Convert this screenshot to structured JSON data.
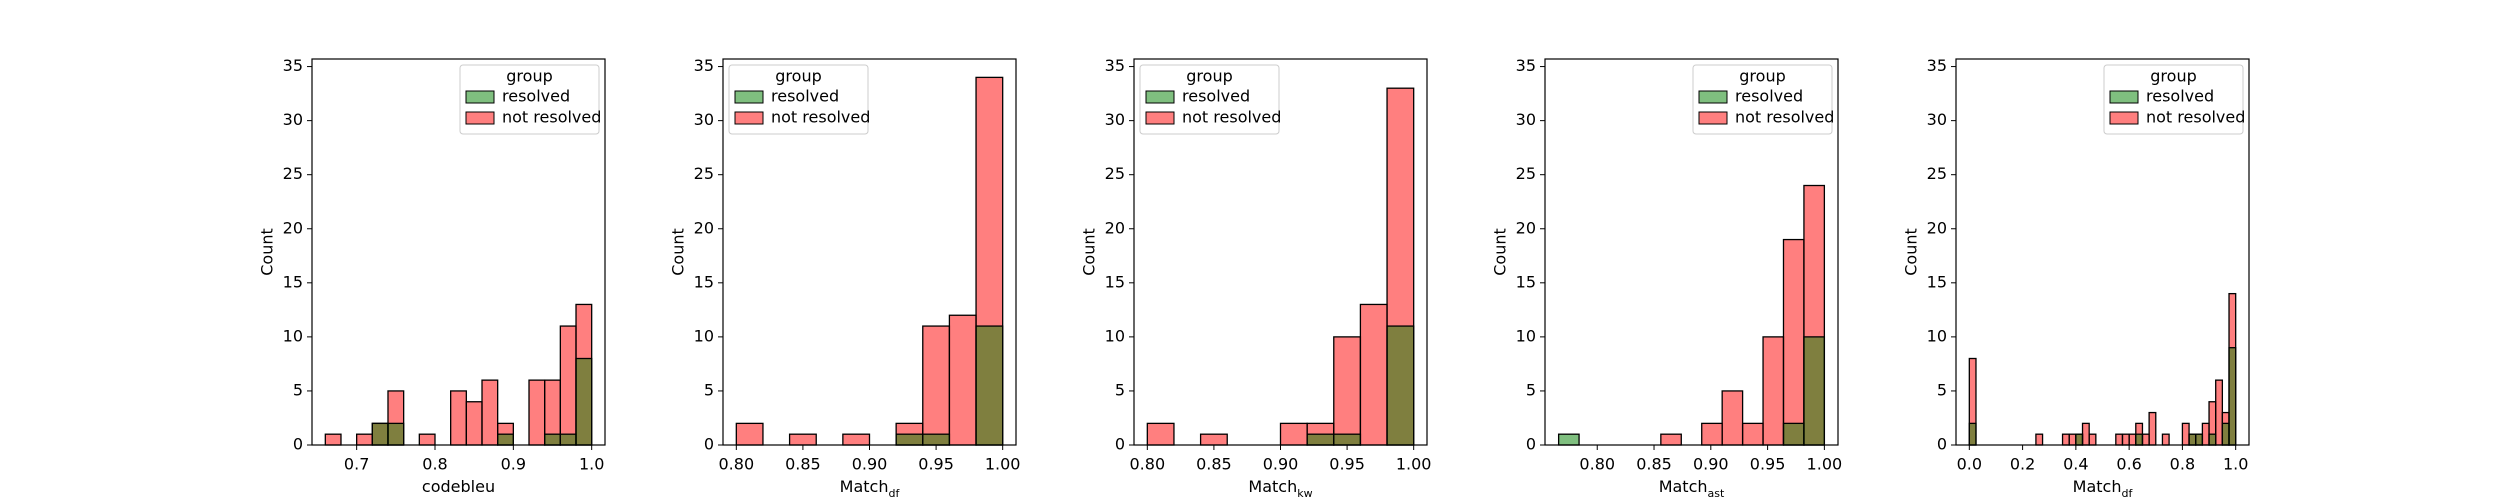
{
  "chart_data": [
    {
      "type": "histogram",
      "xlabel": "codebleu",
      "ylabel": "Count",
      "legend_title": "group",
      "legend": "upper right",
      "alpha": 0.5,
      "bins": [
        0.66,
        0.68,
        0.7,
        0.72,
        0.74,
        0.76,
        0.78,
        0.8,
        0.82,
        0.84,
        0.86,
        0.88,
        0.9,
        0.92,
        0.94,
        0.96,
        0.98,
        1.0
      ],
      "series": [
        {
          "name": "resolved",
          "color": "green",
          "values": [
            0,
            0,
            0,
            2,
            2,
            0,
            0,
            0,
            0,
            0,
            0,
            1,
            0,
            0,
            1,
            1,
            8
          ]
        },
        {
          "name": "not resolved",
          "color": "red",
          "values": [
            1,
            0,
            1,
            2,
            5,
            0,
            1,
            0,
            5,
            4,
            6,
            2,
            0,
            6,
            6,
            11,
            13
          ]
        }
      ],
      "xlim": [
        0.643,
        1.017
      ],
      "xticks": [
        0.7,
        0.8,
        0.9,
        {
          "value": 1,
          "label": "1.0"
        }
      ],
      "ylim": [
        0,
        35.7
      ],
      "yticks": [
        0,
        5,
        10,
        15,
        20,
        25,
        30,
        35
      ]
    },
    {
      "type": "histogram",
      "xlabel": "Match",
      "xlabel_sub": "df",
      "ylabel": "Count",
      "legend_title": "group",
      "legend": "upper left",
      "alpha": 0.5,
      "bins": [
        0.8,
        0.82,
        0.84,
        0.86,
        0.88,
        0.9,
        0.92,
        0.94,
        0.96,
        0.98,
        1.0
      ],
      "series": [
        {
          "name": "resolved",
          "color": "green",
          "values": [
            0,
            0,
            0,
            0,
            0,
            0,
            1,
            1,
            0,
            11
          ]
        },
        {
          "name": "not resolved",
          "color": "red",
          "values": [
            2,
            0,
            1,
            0,
            1,
            0,
            2,
            11,
            12,
            34
          ]
        }
      ],
      "xlim": [
        0.79,
        1.01
      ],
      "xticks": [
        {
          "value": 0.8,
          "label": "0.80"
        },
        0.85,
        {
          "value": 0.9,
          "label": "0.90"
        },
        0.95,
        {
          "value": 1,
          "label": "1.00"
        }
      ],
      "ylim": [
        0,
        35.7
      ],
      "yticks": [
        0,
        5,
        10,
        15,
        20,
        25,
        30,
        35
      ]
    },
    {
      "type": "histogram",
      "xlabel": "Match",
      "xlabel_sub": "kw",
      "ylabel": "Count",
      "legend_title": "group",
      "legend": "upper left",
      "alpha": 0.5,
      "bins": [
        0.8,
        0.82,
        0.84,
        0.86,
        0.88,
        0.9,
        0.92,
        0.94,
        0.96,
        0.98,
        1.0
      ],
      "series": [
        {
          "name": "resolved",
          "color": "green",
          "values": [
            0,
            0,
            0,
            0,
            0,
            0,
            1,
            1,
            0,
            11
          ]
        },
        {
          "name": "not resolved",
          "color": "red",
          "values": [
            2,
            0,
            1,
            0,
            0,
            2,
            2,
            10,
            13,
            33
          ]
        }
      ],
      "xlim": [
        0.79,
        1.01
      ],
      "xticks": [
        {
          "value": 0.8,
          "label": "0.80"
        },
        0.85,
        {
          "value": 0.9,
          "label": "0.90"
        },
        0.95,
        {
          "value": 1,
          "label": "1.00"
        }
      ],
      "ylim": [
        0,
        35.7
      ],
      "yticks": [
        0,
        5,
        10,
        15,
        20,
        25,
        30,
        35
      ]
    },
    {
      "type": "histogram",
      "xlabel": "Match",
      "xlabel_sub": "ast",
      "ylabel": "Count",
      "legend_title": "group",
      "legend": "upper right",
      "alpha": 0.5,
      "bins": [
        0.766,
        0.784,
        0.802,
        0.82,
        0.838,
        0.856,
        0.874,
        0.892,
        0.91,
        0.928,
        0.946,
        0.964,
        0.982,
        1.0
      ],
      "series": [
        {
          "name": "resolved",
          "color": "green",
          "values": [
            1,
            0,
            0,
            0,
            0,
            0,
            0,
            0,
            0,
            0,
            0,
            2,
            10
          ]
        },
        {
          "name": "not resolved",
          "color": "red",
          "values": [
            0,
            0,
            0,
            0,
            0,
            1,
            0,
            2,
            5,
            2,
            10,
            19,
            24
          ]
        }
      ],
      "xlim": [
        0.754,
        1.012
      ],
      "xticks": [
        {
          "value": 0.8,
          "label": "0.80"
        },
        0.85,
        {
          "value": 0.9,
          "label": "0.90"
        },
        0.95,
        {
          "value": 1,
          "label": "1.00"
        }
      ],
      "ylim": [
        0,
        35.7
      ],
      "yticks": [
        0,
        5,
        10,
        15,
        20,
        25,
        30,
        35
      ]
    },
    {
      "type": "histogram",
      "xlabel": "Match",
      "xlabel_sub": "df",
      "ylabel": "Count",
      "legend_title": "group",
      "legend": "upper right",
      "alpha": 0.5,
      "bins": [
        0,
        0.025,
        0.05,
        0.075,
        0.1,
        0.125,
        0.15,
        0.175,
        0.2,
        0.225,
        0.25,
        0.275,
        0.3,
        0.325,
        0.35,
        0.375,
        0.4,
        0.425,
        0.45,
        0.475,
        0.5,
        0.525,
        0.55,
        0.575,
        0.6,
        0.625,
        0.65,
        0.675,
        0.7,
        0.725,
        0.75,
        0.775,
        0.8,
        0.825,
        0.85,
        0.875,
        0.9,
        0.925,
        0.95,
        0.975,
        1.0
      ],
      "series": [
        {
          "name": "resolved",
          "color": "green",
          "values": [
            2,
            0,
            0,
            0,
            0,
            0,
            0,
            0,
            0,
            0,
            0,
            0,
            0,
            0,
            0,
            0,
            1,
            0,
            0,
            0,
            0,
            0,
            0,
            0,
            0,
            1,
            0,
            0,
            0,
            0,
            0,
            0,
            0,
            1,
            1,
            0,
            1,
            0,
            2,
            9
          ]
        },
        {
          "name": "not resolved",
          "color": "red",
          "values": [
            8,
            0,
            0,
            0,
            0,
            0,
            0,
            0,
            0,
            0,
            1,
            0,
            0,
            0,
            1,
            1,
            1,
            2,
            1,
            0,
            0,
            0,
            1,
            1,
            1,
            2,
            1,
            3,
            0,
            1,
            0,
            0,
            2,
            1,
            1,
            2,
            4,
            6,
            3,
            14
          ]
        }
      ],
      "xlim": [
        -0.05,
        1.05
      ],
      "xticks": [
        {
          "value": 0,
          "label": "0.0"
        },
        0.2,
        0.4,
        0.6,
        0.8,
        {
          "value": 1,
          "label": "1.0"
        }
      ],
      "ylim": [
        0,
        35.7
      ],
      "yticks": [
        0,
        5,
        10,
        15,
        20,
        25,
        30,
        35
      ]
    }
  ]
}
